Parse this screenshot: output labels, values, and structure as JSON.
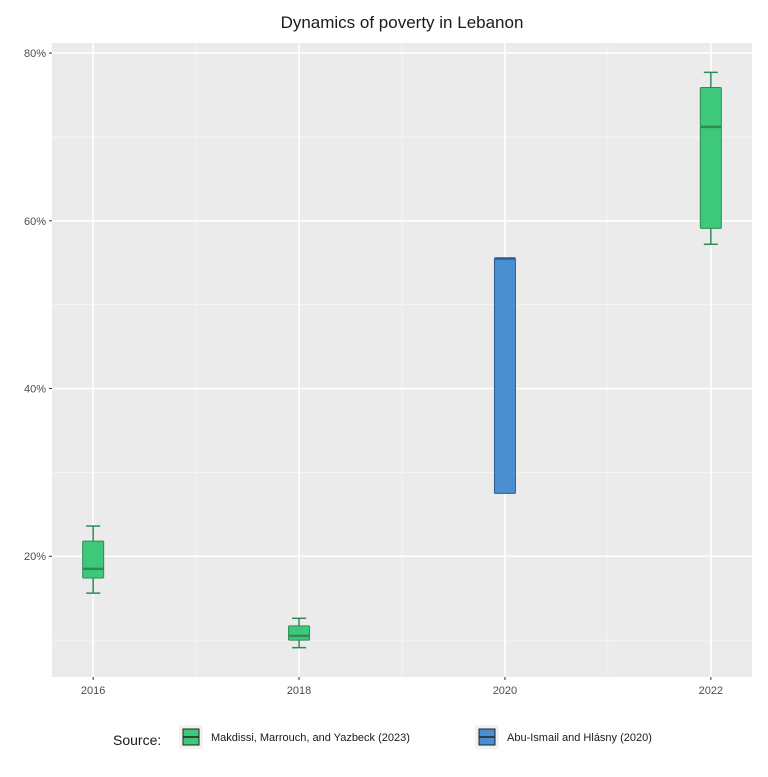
{
  "chart_data": {
    "type": "boxplot",
    "title": "Dynamics of poverty in Lebanon",
    "xlabel": "",
    "ylabel": "",
    "xlim": [
      2015.6,
      2022.4
    ],
    "ylim": [
      5.6,
      81.2
    ],
    "x_ticks": [
      2016,
      2018,
      2020,
      2022
    ],
    "x_tick_labels": [
      "2016",
      "2018",
      "2020",
      "2022"
    ],
    "y_ticks": [
      20,
      40,
      60,
      80
    ],
    "y_tick_labels": [
      "20%",
      "40%",
      "60%",
      "80%"
    ],
    "grid": true,
    "legend": {
      "title": "Source:",
      "placement": "bottom",
      "entries": [
        {
          "label": "Makdissi, Marrouch, and Yazbeck (2023)",
          "color": "#3ec97a",
          "edge": "#2e8b57"
        },
        {
          "label": "Abu-Ismail and Hlásny (2020)",
          "color": "#4a90d0",
          "edge": "#2a5a8a"
        }
      ]
    },
    "boxes": [
      {
        "x": 2016,
        "source": 0,
        "whisker_low": 15.6,
        "q1": 17.4,
        "median": 18.5,
        "q3": 21.8,
        "whisker_high": 23.6
      },
      {
        "x": 2018,
        "source": 0,
        "whisker_low": 9.1,
        "q1": 10.0,
        "median": 10.5,
        "q3": 11.7,
        "whisker_high": 12.6
      },
      {
        "x": 2020,
        "source": 1,
        "whisker_low": 27.5,
        "q1": 27.5,
        "median": 55.5,
        "q3": 55.5,
        "whisker_high": 55.5
      },
      {
        "x": 2022,
        "source": 0,
        "whisker_low": 57.2,
        "q1": 59.1,
        "median": 71.2,
        "q3": 75.9,
        "whisker_high": 77.7
      }
    ],
    "panel_background": "#ebebeb"
  }
}
